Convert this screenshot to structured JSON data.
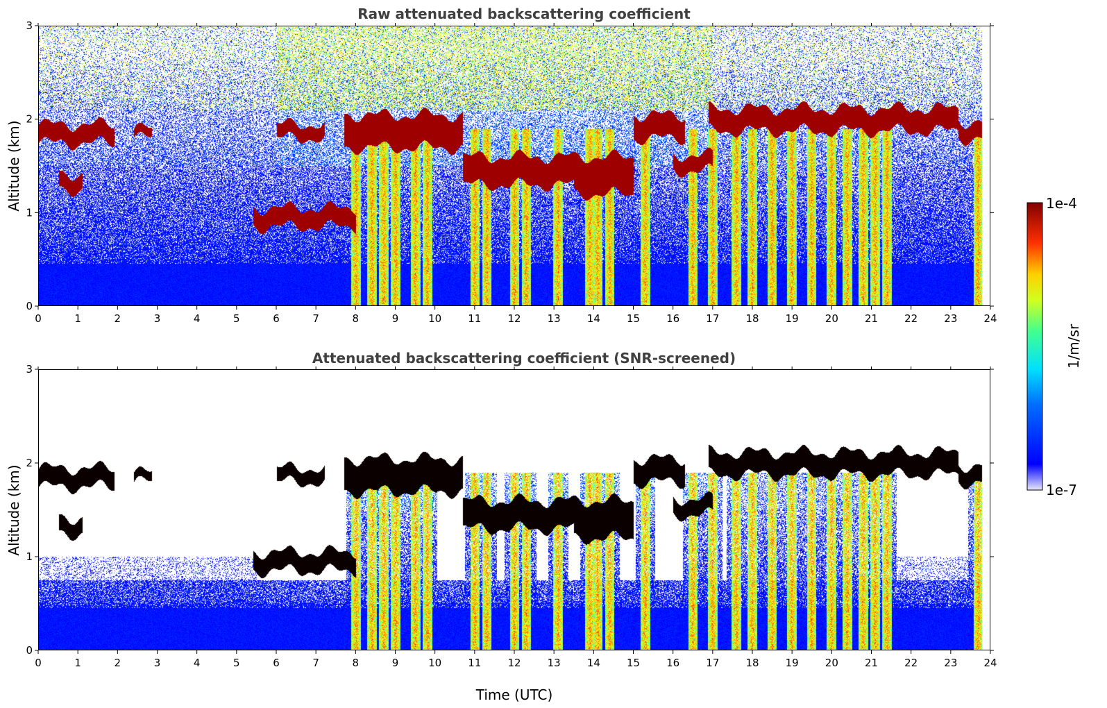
{
  "chart_data": [
    {
      "type": "heatmap",
      "title": "Raw attenuated backscattering coefficient",
      "xlabel": "",
      "ylabel": "Altitude (km)",
      "xlim": [
        0,
        24
      ],
      "ylim": [
        0,
        3
      ],
      "x_ticks": [
        0,
        1,
        2,
        3,
        4,
        5,
        6,
        7,
        8,
        9,
        10,
        11,
        12,
        13,
        14,
        15,
        16,
        17,
        18,
        19,
        20,
        21,
        22,
        23,
        24
      ],
      "y_ticks": [
        0,
        1,
        2,
        3
      ],
      "screened": false
    },
    {
      "type": "heatmap",
      "title": "Attenuated backscattering coefficient (SNR-screened)",
      "xlabel": "Time (UTC)",
      "ylabel": "Altitude (km)",
      "xlim": [
        0,
        24
      ],
      "ylim": [
        0,
        3
      ],
      "x_ticks": [
        0,
        1,
        2,
        3,
        4,
        5,
        6,
        7,
        8,
        9,
        10,
        11,
        12,
        13,
        14,
        15,
        16,
        17,
        18,
        19,
        20,
        21,
        22,
        23,
        24
      ],
      "y_ticks": [
        0,
        1,
        2,
        3
      ],
      "screened": true
    }
  ],
  "colorbar": {
    "label": "1/m/sr",
    "min_label": "1e-7",
    "max_label": "1e-4",
    "colormap": "jet",
    "scale": "log"
  },
  "cloud_layers": [
    {
      "t0": 0.0,
      "t1": 1.9,
      "base": 1.75,
      "top": 1.95
    },
    {
      "t0": 0.5,
      "t1": 1.1,
      "base": 1.25,
      "top": 1.42
    },
    {
      "t0": 2.4,
      "t1": 2.85,
      "base": 1.8,
      "top": 1.9
    },
    {
      "t0": 5.4,
      "t1": 8.0,
      "base": 0.85,
      "top": 1.05
    },
    {
      "t0": 6.0,
      "t1": 7.2,
      "base": 1.8,
      "top": 1.95
    },
    {
      "t0": 7.7,
      "t1": 10.7,
      "base": 1.7,
      "top": 2.05
    },
    {
      "t0": 10.7,
      "t1": 13.5,
      "base": 1.3,
      "top": 1.6
    },
    {
      "t0": 13.5,
      "t1": 15.0,
      "base": 1.2,
      "top": 1.6
    },
    {
      "t0": 15.0,
      "t1": 16.3,
      "base": 1.8,
      "top": 2.05
    },
    {
      "t0": 16.0,
      "t1": 17.0,
      "base": 1.45,
      "top": 1.62
    },
    {
      "t0": 16.9,
      "t1": 23.2,
      "base": 1.88,
      "top": 2.12
    },
    {
      "t0": 23.2,
      "t1": 23.8,
      "base": 1.8,
      "top": 1.98
    }
  ],
  "precip_shafts": [
    8.0,
    8.4,
    8.7,
    9.0,
    9.5,
    9.8,
    11.0,
    11.3,
    12.0,
    12.3,
    13.1,
    13.9,
    14.1,
    14.4,
    15.3,
    16.5,
    17.0,
    17.6,
    18.0,
    18.5,
    19.0,
    19.5,
    20.0,
    20.4,
    20.8,
    21.1,
    21.4,
    23.7
  ]
}
